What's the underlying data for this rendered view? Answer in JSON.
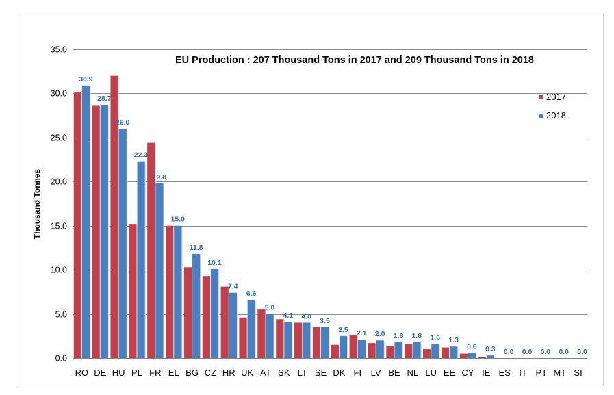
{
  "chart_data": {
    "type": "bar",
    "title": "EU Production : 207 Thousand Tons in 2017 and 209 Thousand Tons in 2018",
    "xlabel": "",
    "ylabel": "Thousand Tonnes",
    "ylim": [
      0,
      35
    ],
    "yticks": [
      "0.0",
      "5.0",
      "10.0",
      "15.0",
      "20.0",
      "25.0",
      "30.0",
      "35.0"
    ],
    "grid": true,
    "legend_position": "top-right",
    "categories": [
      "RO",
      "DE",
      "HU",
      "PL",
      "FR",
      "EL",
      "BG",
      "CZ",
      "HR",
      "UK",
      "AT",
      "SK",
      "LT",
      "SE",
      "DK",
      "FI",
      "LV",
      "BE",
      "NL",
      "LU",
      "EE",
      "CY",
      "IE",
      "ES",
      "IT",
      "PT",
      "MT",
      "SI"
    ],
    "series": [
      {
        "name": "2017",
        "color": "#c0404b",
        "values": [
          30.1,
          28.6,
          32.0,
          15.2,
          24.4,
          15.0,
          10.3,
          9.3,
          8.1,
          4.6,
          5.5,
          4.4,
          4.0,
          3.5,
          1.5,
          2.6,
          1.7,
          1.4,
          1.6,
          1.0,
          1.2,
          0.5,
          0.1,
          0.0,
          0.0,
          0.0,
          0.0,
          0.0
        ]
      },
      {
        "name": "2018",
        "color": "#4a7fc1",
        "values": [
          30.9,
          28.7,
          26.0,
          22.3,
          19.8,
          15.0,
          11.8,
          10.1,
          7.4,
          6.6,
          5.0,
          4.1,
          4.0,
          3.5,
          2.5,
          2.1,
          2.0,
          1.8,
          1.8,
          1.6,
          1.3,
          0.6,
          0.3,
          0.0,
          0.0,
          0.0,
          0.0,
          0.0
        ],
        "labels": [
          "30.9",
          "28.7",
          "26.0",
          "22.3",
          "19.8",
          "15.0",
          "11.8",
          "10.1",
          "7.4",
          "6.6",
          "5.0",
          "4.1",
          "4.0",
          "3.5",
          "2.5",
          "2.1",
          "2.0",
          "1.8",
          "1.8",
          "1.6",
          "1.3",
          "0.6",
          "0.3",
          "0.0",
          "0.0",
          "0.0",
          "0.0",
          "0.0"
        ]
      }
    ]
  }
}
